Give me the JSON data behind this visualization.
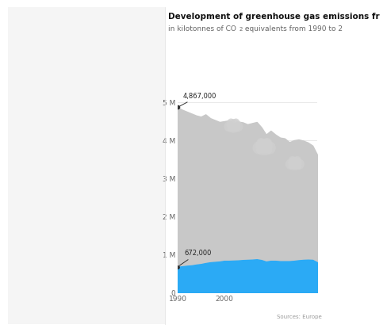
{
  "title": "Development of greenhouse gas emissions fr",
  "subtitle_part1": "in kilotonnes of CO",
  "subtitle_part2": " equivalents from 1990 to 2",
  "source": "Sources: Europe",
  "bg_color": "#ffffff",
  "area_total_color": "#c8c8c8",
  "area_transport_color": "#2baaf5",
  "years": [
    1990,
    1991,
    1992,
    1993,
    1994,
    1995,
    1996,
    1997,
    1998,
    1999,
    2000,
    2001,
    2002,
    2003,
    2004,
    2005,
    2006,
    2007,
    2008,
    2009,
    2010,
    2011,
    2012,
    2013,
    2014,
    2015,
    2016,
    2017,
    2018,
    2019,
    2020
  ],
  "total_emissions": [
    4867000,
    4800000,
    4750000,
    4700000,
    4650000,
    4620000,
    4680000,
    4580000,
    4530000,
    4480000,
    4500000,
    4520000,
    4460000,
    4490000,
    4470000,
    4420000,
    4450000,
    4480000,
    4340000,
    4150000,
    4250000,
    4150000,
    4070000,
    4050000,
    3950000,
    4000000,
    4020000,
    3990000,
    3940000,
    3860000,
    3620000
  ],
  "transport_emissions": [
    672000,
    685000,
    700000,
    710000,
    730000,
    745000,
    770000,
    790000,
    800000,
    810000,
    830000,
    830000,
    835000,
    840000,
    850000,
    855000,
    860000,
    870000,
    850000,
    810000,
    830000,
    830000,
    820000,
    820000,
    820000,
    830000,
    845000,
    855000,
    860000,
    855000,
    790000
  ],
  "annotation_total": "4,867,000",
  "annotation_transport": "672,000",
  "annotation_total_value": 4867000,
  "annotation_transport_value": 672000,
  "ylim": [
    0,
    5500000
  ],
  "yticks": [
    0,
    1000000,
    2000000,
    3000000,
    4000000,
    5000000
  ],
  "ytick_labels": [
    "0",
    "1 M—",
    "2 M—",
    "3 M—",
    "4 M—",
    "5 M—"
  ],
  "left_bg": "#f5f5f5",
  "divider_color": "#dddddd"
}
